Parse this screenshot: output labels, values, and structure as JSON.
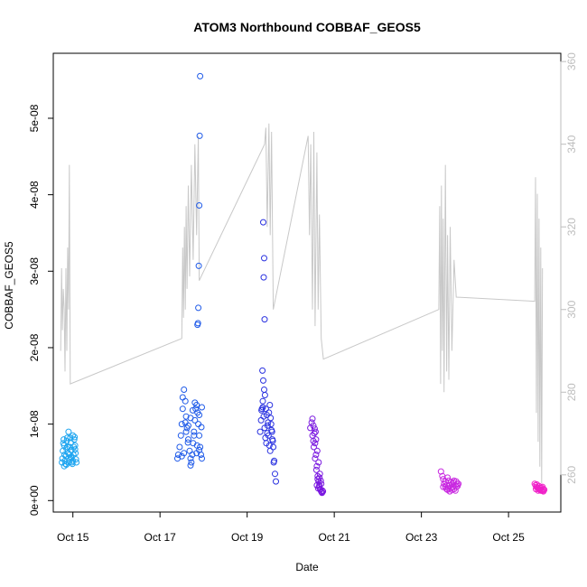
{
  "chart_data": {
    "type": "scatter",
    "title": "ATOM3 Northbound COBBAF_GEOS5",
    "xlabel": "Date",
    "ylabel": "COBBAF_GEOS5",
    "xlim": [
      14.55,
      26.2
    ],
    "ylim": [
      -1.5e-09,
      5.85e-08
    ],
    "y2lim": [
      251,
      362
    ],
    "x_ticks": [
      15,
      17,
      19,
      21,
      23,
      25
    ],
    "x_tick_labels": [
      "Oct 15",
      "Oct 17",
      "Oct 19",
      "Oct 21",
      "Oct 23",
      "Oct 25"
    ],
    "y_ticks": [
      0,
      1e-08,
      2e-08,
      3e-08,
      4e-08,
      5e-08
    ],
    "y_tick_labels": [
      "0e+00",
      "1e-08",
      "2e-08",
      "3e-08",
      "4e-08",
      "5e-08"
    ],
    "y2_ticks": [
      260,
      280,
      300,
      320,
      340,
      360
    ],
    "y2_tick_labels": [
      "260",
      "280",
      "300",
      "320",
      "340",
      "360"
    ],
    "grid": false,
    "series": [
      {
        "color": "#1EA5F0",
        "points": [
          [
            14.75,
            0.5
          ],
          [
            14.76,
            0.55
          ],
          [
            14.77,
            0.65
          ],
          [
            14.78,
            0.75
          ],
          [
            14.79,
            0.8
          ],
          [
            14.8,
            0.72
          ],
          [
            14.81,
            0.6
          ],
          [
            14.82,
            0.52
          ],
          [
            14.83,
            0.48
          ],
          [
            14.84,
            0.58
          ],
          [
            14.85,
            0.68
          ],
          [
            14.86,
            0.78
          ],
          [
            14.87,
            0.82
          ],
          [
            14.88,
            0.7
          ],
          [
            14.89,
            0.62
          ],
          [
            14.9,
            0.55
          ],
          [
            14.91,
            0.5
          ],
          [
            14.92,
            0.6
          ],
          [
            14.93,
            0.7
          ],
          [
            14.94,
            0.82
          ],
          [
            14.95,
            0.76
          ],
          [
            14.96,
            0.66
          ],
          [
            14.97,
            0.56
          ],
          [
            14.98,
            0.5
          ],
          [
            14.99,
            0.48
          ],
          [
            15.0,
            0.52
          ],
          [
            15.01,
            0.6
          ],
          [
            15.02,
            0.7
          ],
          [
            15.03,
            0.8
          ],
          [
            15.04,
            0.83
          ],
          [
            15.05,
            0.72
          ],
          [
            15.06,
            0.62
          ],
          [
            15.07,
            0.54
          ],
          [
            15.08,
            0.5
          ],
          [
            14.8,
            0.45
          ],
          [
            14.9,
            0.9
          ],
          [
            15.0,
            0.85
          ],
          [
            14.85,
            0.47
          ],
          [
            14.95,
            0.57
          ],
          [
            15.05,
            0.67
          ]
        ]
      },
      {
        "color": "#1F5AE8",
        "points": [
          [
            17.4,
            0.55
          ],
          [
            17.42,
            0.6
          ],
          [
            17.45,
            0.7
          ],
          [
            17.48,
            0.85
          ],
          [
            17.5,
            1.0
          ],
          [
            17.52,
            1.2
          ],
          [
            17.55,
            1.45
          ],
          [
            17.58,
            1.3
          ],
          [
            17.6,
            1.1
          ],
          [
            17.62,
            0.95
          ],
          [
            17.65,
            0.8
          ],
          [
            17.68,
            0.65
          ],
          [
            17.7,
            0.55
          ],
          [
            17.72,
            0.5
          ],
          [
            17.74,
            0.6
          ],
          [
            17.76,
            0.75
          ],
          [
            17.78,
            0.9
          ],
          [
            17.8,
            1.05
          ],
          [
            17.82,
            1.2
          ],
          [
            17.84,
            1.25
          ],
          [
            17.86,
            1.15
          ],
          [
            17.88,
            1.0
          ],
          [
            17.9,
            0.85
          ],
          [
            17.92,
            0.7
          ],
          [
            17.94,
            0.6
          ],
          [
            17.96,
            0.55
          ],
          [
            17.5,
            0.58
          ],
          [
            17.55,
            0.62
          ],
          [
            17.6,
            0.9
          ],
          [
            17.65,
            0.98
          ],
          [
            17.7,
            1.08
          ],
          [
            17.75,
            1.18
          ],
          [
            17.8,
            1.28
          ],
          [
            17.85,
            0.72
          ],
          [
            17.9,
            0.66
          ],
          [
            17.95,
            0.96
          ],
          [
            17.52,
            1.35
          ],
          [
            17.58,
            1.02
          ],
          [
            17.64,
            0.76
          ],
          [
            17.7,
            0.46
          ],
          [
            17.78,
            0.85
          ],
          [
            17.84,
            0.62
          ],
          [
            17.9,
            1.12
          ],
          [
            17.96,
            1.22
          ],
          [
            17.86,
            2.3
          ],
          [
            17.87,
            2.32
          ],
          [
            17.88,
            2.52
          ],
          [
            17.89,
            3.07
          ],
          [
            17.9,
            3.86
          ],
          [
            17.91,
            4.77
          ],
          [
            17.92,
            5.55
          ]
        ]
      },
      {
        "color": "#2A32E0",
        "points": [
          [
            19.3,
            0.9
          ],
          [
            19.32,
            1.05
          ],
          [
            19.34,
            1.2
          ],
          [
            19.36,
            1.3
          ],
          [
            19.38,
            1.1
          ],
          [
            19.4,
            0.95
          ],
          [
            19.42,
            0.82
          ],
          [
            19.44,
            0.75
          ],
          [
            19.46,
            0.88
          ],
          [
            19.48,
            1.02
          ],
          [
            19.5,
            1.15
          ],
          [
            19.52,
            1.25
          ],
          [
            19.54,
            1.08
          ],
          [
            19.56,
            0.92
          ],
          [
            19.58,
            0.8
          ],
          [
            19.6,
            0.7
          ],
          [
            19.62,
            0.52
          ],
          [
            19.64,
            0.35
          ],
          [
            19.66,
            0.25
          ],
          [
            19.35,
            1.7
          ],
          [
            19.37,
            1.57
          ],
          [
            19.39,
            1.45
          ],
          [
            19.41,
            1.38
          ],
          [
            19.43,
            1.2
          ],
          [
            19.45,
            1.12
          ],
          [
            19.47,
            0.98
          ],
          [
            19.49,
            0.85
          ],
          [
            19.51,
            0.72
          ],
          [
            19.53,
            0.65
          ],
          [
            19.55,
            1.0
          ],
          [
            19.57,
            0.9
          ],
          [
            19.59,
            0.78
          ],
          [
            19.61,
            0.5
          ],
          [
            19.33,
            1.18
          ],
          [
            19.36,
            1.22
          ],
          [
            19.4,
            2.37
          ],
          [
            19.38,
            2.92
          ],
          [
            19.39,
            3.17
          ],
          [
            19.37,
            3.64
          ]
        ]
      },
      {
        "color": "#7A18E0",
        "points": [
          [
            20.45,
            0.95
          ],
          [
            20.48,
            1.02
          ],
          [
            20.5,
            1.07
          ],
          [
            20.52,
            0.98
          ],
          [
            20.54,
            0.88
          ],
          [
            20.56,
            0.75
          ],
          [
            20.58,
            0.6
          ],
          [
            20.6,
            0.45
          ],
          [
            20.62,
            0.32
          ],
          [
            20.64,
            0.25
          ],
          [
            20.66,
            0.2
          ],
          [
            20.68,
            0.15
          ],
          [
            20.7,
            0.12
          ],
          [
            20.72,
            0.1
          ],
          [
            20.5,
            0.85
          ],
          [
            20.53,
            0.7
          ],
          [
            20.56,
            0.55
          ],
          [
            20.59,
            0.4
          ],
          [
            20.62,
            0.28
          ],
          [
            20.65,
            0.18
          ],
          [
            20.68,
            0.14
          ],
          [
            20.71,
            0.11
          ],
          [
            20.55,
            0.94
          ],
          [
            20.58,
            0.8
          ],
          [
            20.61,
            0.65
          ],
          [
            20.64,
            0.5
          ],
          [
            20.67,
            0.35
          ],
          [
            20.7,
            0.22
          ],
          [
            20.73,
            0.13
          ],
          [
            20.52,
            0.78
          ],
          [
            20.57,
            0.9
          ],
          [
            20.6,
            0.2
          ],
          [
            20.63,
            0.16
          ],
          [
            20.66,
            0.3
          ],
          [
            20.69,
            0.26
          ],
          [
            20.74,
            0.12
          ]
        ]
      },
      {
        "color": "#C828E0",
        "points": [
          [
            23.45,
            0.38
          ],
          [
            23.48,
            0.32
          ],
          [
            23.5,
            0.28
          ],
          [
            23.52,
            0.22
          ],
          [
            23.55,
            0.18
          ],
          [
            23.58,
            0.15
          ],
          [
            23.6,
            0.14
          ],
          [
            23.62,
            0.16
          ],
          [
            23.65,
            0.2
          ],
          [
            23.68,
            0.24
          ],
          [
            23.7,
            0.22
          ],
          [
            23.72,
            0.18
          ],
          [
            23.75,
            0.15
          ],
          [
            23.78,
            0.2
          ],
          [
            23.8,
            0.25
          ],
          [
            23.82,
            0.22
          ],
          [
            23.5,
            0.18
          ],
          [
            23.55,
            0.25
          ],
          [
            23.6,
            0.3
          ],
          [
            23.65,
            0.12
          ],
          [
            23.7,
            0.14
          ],
          [
            23.75,
            0.26
          ],
          [
            23.8,
            0.18
          ],
          [
            23.85,
            0.22
          ],
          [
            23.58,
            0.2
          ],
          [
            23.63,
            0.26
          ],
          [
            23.68,
            0.16
          ],
          [
            23.73,
            0.24
          ],
          [
            23.78,
            0.13
          ],
          [
            23.83,
            0.19
          ]
        ]
      },
      {
        "color": "#F020C8",
        "points": [
          [
            25.6,
            0.22
          ],
          [
            25.62,
            0.2
          ],
          [
            25.64,
            0.18
          ],
          [
            25.66,
            0.17
          ],
          [
            25.68,
            0.16
          ],
          [
            25.7,
            0.15
          ],
          [
            25.72,
            0.14
          ],
          [
            25.74,
            0.13
          ],
          [
            25.76,
            0.14
          ],
          [
            25.78,
            0.13
          ],
          [
            25.8,
            0.12
          ],
          [
            25.65,
            0.21
          ],
          [
            25.7,
            0.19
          ],
          [
            25.75,
            0.17
          ],
          [
            25.8,
            0.15
          ],
          [
            25.63,
            0.15
          ],
          [
            25.68,
            0.13
          ],
          [
            25.73,
            0.16
          ],
          [
            25.78,
            0.18
          ],
          [
            25.82,
            0.14
          ]
        ]
      }
    ],
    "y_scale_note_units": 1e-08,
    "line_series": {
      "color": "#C8C8C8",
      "axis": "right",
      "points": [
        [
          14.72,
          290
        ],
        [
          14.74,
          310
        ],
        [
          14.76,
          295
        ],
        [
          14.78,
          305
        ],
        [
          14.8,
          300
        ],
        [
          14.82,
          285
        ],
        [
          14.84,
          310
        ],
        [
          14.86,
          290
        ],
        [
          14.88,
          315
        ],
        [
          14.9,
          300
        ],
        [
          14.92,
          335
        ],
        [
          14.94,
          282
        ],
        [
          17.5,
          293
        ],
        [
          17.52,
          315
        ],
        [
          17.54,
          298
        ],
        [
          17.56,
          320
        ],
        [
          17.58,
          300
        ],
        [
          17.6,
          325
        ],
        [
          17.62,
          305
        ],
        [
          17.65,
          330
        ],
        [
          17.68,
          308
        ],
        [
          17.72,
          335
        ],
        [
          17.76,
          312
        ],
        [
          17.8,
          340
        ],
        [
          17.84,
          318
        ],
        [
          17.88,
          342
        ],
        [
          17.9,
          307
        ],
        [
          19.4,
          340
        ],
        [
          19.43,
          344
        ],
        [
          19.46,
          320
        ],
        [
          19.5,
          345
        ],
        [
          19.53,
          318
        ],
        [
          19.56,
          343
        ],
        [
          19.6,
          300
        ],
        [
          20.4,
          342
        ],
        [
          20.43,
          318
        ],
        [
          20.46,
          340
        ],
        [
          20.5,
          300
        ],
        [
          20.53,
          343
        ],
        [
          20.56,
          296
        ],
        [
          20.6,
          338
        ],
        [
          20.63,
          300
        ],
        [
          20.66,
          323
        ],
        [
          20.7,
          293
        ],
        [
          20.75,
          288
        ],
        [
          23.4,
          300
        ],
        [
          23.42,
          325
        ],
        [
          23.44,
          282
        ],
        [
          23.46,
          330
        ],
        [
          23.48,
          290
        ],
        [
          23.5,
          322
        ],
        [
          23.52,
          280
        ],
        [
          23.55,
          335
        ],
        [
          23.58,
          285
        ],
        [
          23.6,
          318
        ],
        [
          23.63,
          283
        ],
        [
          23.66,
          320
        ],
        [
          23.7,
          290
        ],
        [
          23.75,
          312
        ],
        [
          23.8,
          303
        ],
        [
          25.6,
          302
        ],
        [
          25.62,
          332
        ],
        [
          25.64,
          275
        ],
        [
          25.66,
          328
        ],
        [
          25.68,
          268
        ],
        [
          25.7,
          322
        ],
        [
          25.72,
          262
        ],
        [
          25.74,
          315
        ],
        [
          25.76,
          258
        ],
        [
          25.78,
          310
        ]
      ]
    }
  }
}
